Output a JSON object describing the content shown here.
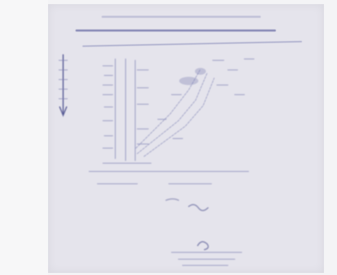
{
  "document": {
    "kind": "scanned handwritten page",
    "background_color": "#f4f4f6",
    "paper_color": "#e5e4ec",
    "ink_color": "#7e81b4"
  }
}
